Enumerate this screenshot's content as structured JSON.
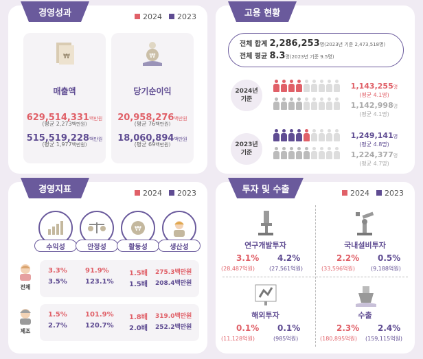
{
  "legend": {
    "y2024": "2024",
    "y2023": "2023",
    "color2024": "#e06068",
    "color2023": "#5f4c92"
  },
  "performance": {
    "title": "경영성과",
    "sales": {
      "label": "매출액",
      "v2024": "629,514,331",
      "unit": "백만원",
      "avg2024": "(평균 2,273",
      "avg2024_unit": "백만원)",
      "v2023": "515,519,228",
      "avg2023": "(평균 1,977",
      "avg2023_unit": "백만원)"
    },
    "net": {
      "label": "당기순이익",
      "v2024": "20,958,276",
      "unit": "백만원",
      "avg2024": "(평균 76",
      "avg2024_unit": "백만원)",
      "v2023": "18,060,894",
      "avg2023": "(평균 69",
      "avg2023_unit": "백만원)"
    }
  },
  "employment": {
    "title": "고용 현황",
    "total_label": "전체 합계",
    "total_value": "2,286,253",
    "total_note": "명(2023년 기준 2,473,518명)",
    "avg_label": "전체 평균",
    "avg_value": "8.3",
    "avg_note": "명(2023년 기준 9.5명)",
    "y2024_label": "2024년\n기준",
    "y2023_label": "2023년\n기준",
    "y2024_a": "1,143,255",
    "y2024_a_unit": "명",
    "y2024_a_avg": "(평균 4.1명)",
    "y2024_b": "1,142,998",
    "y2024_b_unit": "명",
    "y2024_b_avg": "(평균 4.1명)",
    "y2023_a": "1,249,141",
    "y2023_a_unit": "명",
    "y2023_a_avg": "(평균 4.8명)",
    "y2023_b": "1,224,377",
    "y2023_b_unit": "명",
    "y2023_b_avg": "(평균 4.7명)"
  },
  "indicators": {
    "title": "경영지표",
    "cols": [
      "수익성",
      "안정성",
      "활동성",
      "생산성"
    ],
    "rows": [
      {
        "label": "전체",
        "v2024": [
          "3.3%",
          "91.9%",
          "1.5배",
          "275.3백만원"
        ],
        "v2023": [
          "3.5%",
          "123.1%",
          "1.5배",
          "208.4백만원"
        ]
      },
      {
        "label": "제조",
        "v2024": [
          "1.5%",
          "101.9%",
          "1.8배",
          "319.0백만원"
        ],
        "v2023": [
          "2.7%",
          "120.7%",
          "2.0배",
          "252.2백만원"
        ]
      }
    ]
  },
  "investment": {
    "title": "투자 및 수출",
    "rnd": {
      "label": "연구개발투자",
      "v2024": "3.1%",
      "n2024": "(28,487억원)",
      "v2023": "4.2%",
      "n2023": "(27,561억원)"
    },
    "domestic": {
      "label": "국내설비투자",
      "v2024": "2.2%",
      "n2024": "(33,596억원)",
      "v2023": "0.5%",
      "n2023": "(9,188억원)"
    },
    "overseas": {
      "label": "해외투자",
      "v2024": "0.1%",
      "n2024": "(11,128억원)",
      "v2023": "0.1%",
      "n2023": "(985억원)"
    },
    "export": {
      "label": "수출",
      "v2024": "2.3%",
      "n2024": "(180,895억원)",
      "v2023": "2.4%",
      "n2023": "(159,115억원)"
    }
  }
}
